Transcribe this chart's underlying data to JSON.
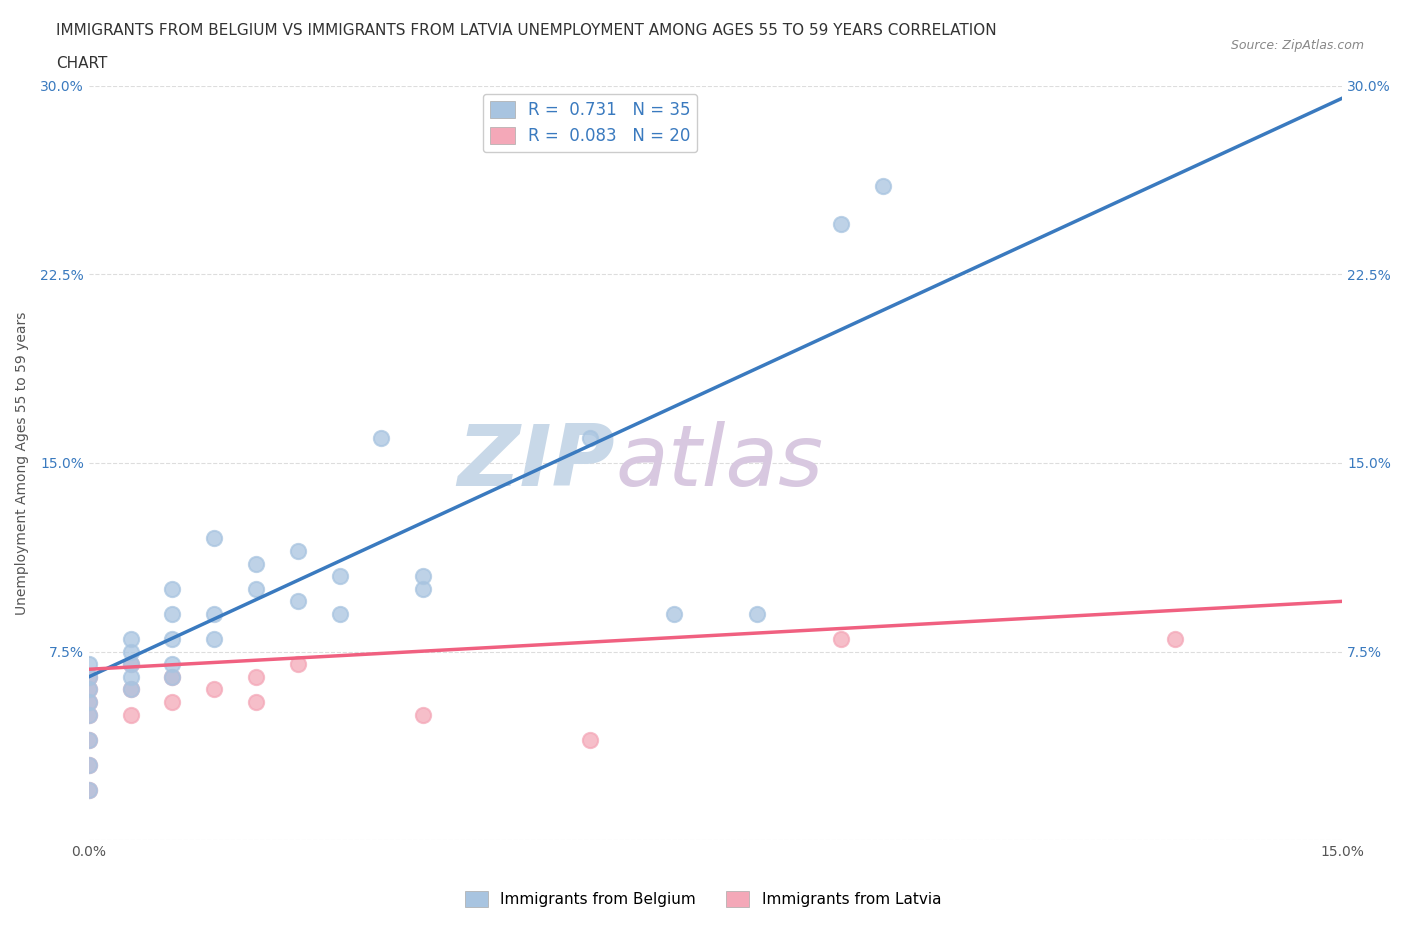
{
  "title_line1": "IMMIGRANTS FROM BELGIUM VS IMMIGRANTS FROM LATVIA UNEMPLOYMENT AMONG AGES 55 TO 59 YEARS CORRELATION",
  "title_line2": "CHART",
  "source": "Source: ZipAtlas.com",
  "ylabel": "Unemployment Among Ages 55 to 59 years",
  "xlim": [
    0.0,
    0.15
  ],
  "ylim": [
    0.0,
    0.3
  ],
  "xticks": [
    0.0,
    0.05,
    0.1,
    0.15
  ],
  "xticklabels": [
    "0.0%",
    "",
    "",
    "15.0%"
  ],
  "yticks": [
    0.0,
    0.075,
    0.15,
    0.225,
    0.3
  ],
  "yticklabels": [
    "",
    "7.5%",
    "15.0%",
    "22.5%",
    "30.0%"
  ],
  "belgium_R": 0.731,
  "belgium_N": 35,
  "latvia_R": 0.083,
  "latvia_N": 20,
  "belgium_color": "#a8c4e0",
  "latvia_color": "#f4a8b8",
  "belgium_line_color": "#3a7abf",
  "latvia_line_color": "#f06080",
  "watermark_zip": "ZIP",
  "watermark_atlas": "atlas",
  "watermark_color_zip": "#c8d8e8",
  "watermark_color_atlas": "#d8c8e0",
  "belgium_x": [
    0.0,
    0.0,
    0.0,
    0.0,
    0.0,
    0.0,
    0.0,
    0.0,
    0.005,
    0.005,
    0.005,
    0.005,
    0.005,
    0.01,
    0.01,
    0.01,
    0.01,
    0.01,
    0.015,
    0.015,
    0.015,
    0.02,
    0.02,
    0.025,
    0.025,
    0.03,
    0.03,
    0.035,
    0.04,
    0.04,
    0.06,
    0.07,
    0.08,
    0.09,
    0.095
  ],
  "belgium_y": [
    0.02,
    0.03,
    0.04,
    0.05,
    0.055,
    0.06,
    0.065,
    0.07,
    0.06,
    0.065,
    0.07,
    0.075,
    0.08,
    0.065,
    0.07,
    0.08,
    0.09,
    0.1,
    0.08,
    0.09,
    0.12,
    0.1,
    0.11,
    0.095,
    0.115,
    0.09,
    0.105,
    0.16,
    0.1,
    0.105,
    0.16,
    0.09,
    0.09,
    0.245,
    0.26
  ],
  "latvia_x": [
    0.0,
    0.0,
    0.0,
    0.0,
    0.0,
    0.0,
    0.0,
    0.005,
    0.005,
    0.005,
    0.01,
    0.01,
    0.015,
    0.02,
    0.02,
    0.025,
    0.04,
    0.06,
    0.09,
    0.13
  ],
  "latvia_y": [
    0.02,
    0.03,
    0.04,
    0.05,
    0.055,
    0.06,
    0.065,
    0.05,
    0.06,
    0.07,
    0.055,
    0.065,
    0.06,
    0.055,
    0.065,
    0.07,
    0.05,
    0.04,
    0.08,
    0.08
  ],
  "title_fontsize": 11,
  "axis_fontsize": 10,
  "tick_fontsize": 10,
  "legend_fontsize": 12,
  "marker_size": 120,
  "background_color": "#ffffff",
  "grid_color": "#dddddd",
  "belgium_trendline": [
    0.0,
    0.15,
    0.065,
    0.295
  ],
  "latvia_trendline": [
    0.0,
    0.15,
    0.068,
    0.095
  ]
}
